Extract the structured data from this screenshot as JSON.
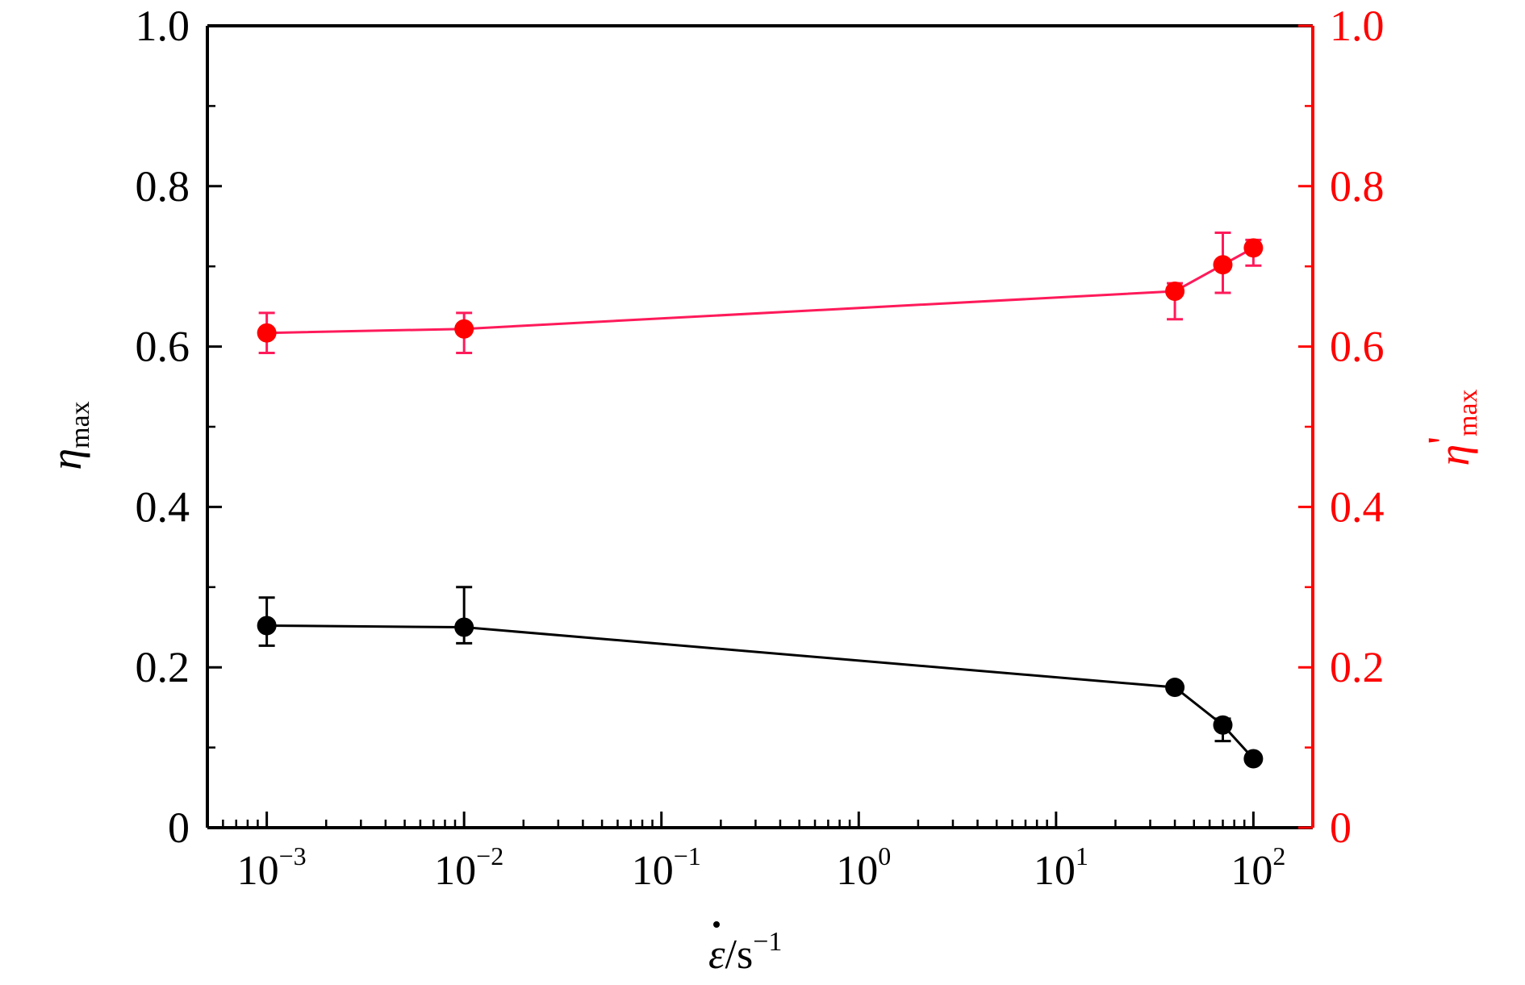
{
  "chart_data": {
    "type": "line",
    "x_scale": "log",
    "xlim": [
      0.0005,
      200
    ],
    "x_ticks": [
      {
        "value": 0.001,
        "base": "10",
        "exp": "−3"
      },
      {
        "value": 0.01,
        "base": "10",
        "exp": "−2"
      },
      {
        "value": 0.1,
        "base": "10",
        "exp": "−1"
      },
      {
        "value": 1,
        "base": "10",
        "exp": "0"
      },
      {
        "value": 10,
        "base": "10",
        "exp": "1"
      },
      {
        "value": 100,
        "base": "10",
        "exp": "2"
      }
    ],
    "xlabel": {
      "symbol": "ε",
      "unit": "/s",
      "exp": "−1"
    },
    "y_left": {
      "label": {
        "main": "η",
        "sub": "max"
      },
      "ylim": [
        0,
        1.0
      ],
      "ticks": [
        0,
        0.2,
        0.4,
        0.6,
        0.8,
        1.0
      ],
      "tick_labels": [
        "0",
        "0.2",
        "0.4",
        "0.6",
        "0.8",
        "1.0"
      ],
      "color": "#000000"
    },
    "y_right": {
      "label": {
        "main": "η",
        "prime": "'",
        "sub": "max"
      },
      "ylim": [
        0,
        1.0
      ],
      "ticks": [
        0,
        0.2,
        0.4,
        0.6,
        0.8,
        1.0
      ],
      "tick_labels": [
        "0",
        "0.2",
        "0.4",
        "0.6",
        "0.8",
        "1.0"
      ],
      "color": "#ff0000"
    },
    "series": [
      {
        "axis": "left",
        "color": "#000000",
        "x": [
          0.001,
          0.01,
          40,
          70,
          100
        ],
        "y": [
          0.252,
          0.25,
          0.175,
          0.128,
          0.086
        ],
        "err_up": [
          0.035,
          0.05,
          0.005,
          0.008,
          0.004
        ],
        "err_down": [
          0.025,
          0.02,
          0.005,
          0.02,
          0.004
        ]
      },
      {
        "axis": "right",
        "color": "#ff0000",
        "line_color": "#ff1a5a",
        "x": [
          0.001,
          0.01,
          40,
          70,
          100
        ],
        "y": [
          0.617,
          0.622,
          0.669,
          0.702,
          0.723
        ],
        "err_up": [
          0.025,
          0.02,
          0.01,
          0.04,
          0.01
        ],
        "err_down": [
          0.025,
          0.03,
          0.035,
          0.035,
          0.022
        ]
      }
    ]
  }
}
